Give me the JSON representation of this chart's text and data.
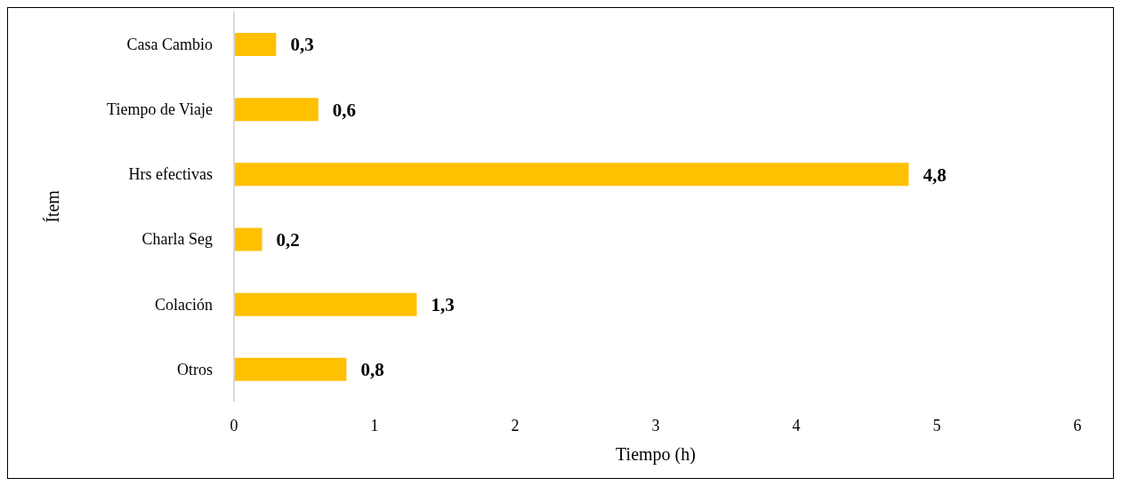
{
  "chart_data": {
    "type": "bar",
    "orientation": "horizontal",
    "xlabel": "Tiempo (h)",
    "ylabel": "Ítem",
    "categories": [
      "Casa Cambio",
      "Tiempo de Viaje",
      "Hrs efectivas",
      "Charla Seg",
      "Colación",
      "Otros"
    ],
    "values": [
      0.3,
      0.6,
      4.8,
      0.2,
      1.3,
      0.8
    ],
    "value_labels": [
      "0,3",
      "0,6",
      "4,8",
      "0,2",
      "1,3",
      "0,8"
    ],
    "color": "#ffc000",
    "xlim": [
      0,
      6
    ],
    "xticks": [
      0,
      1,
      2,
      3,
      4,
      5,
      6
    ],
    "grid": false
  }
}
